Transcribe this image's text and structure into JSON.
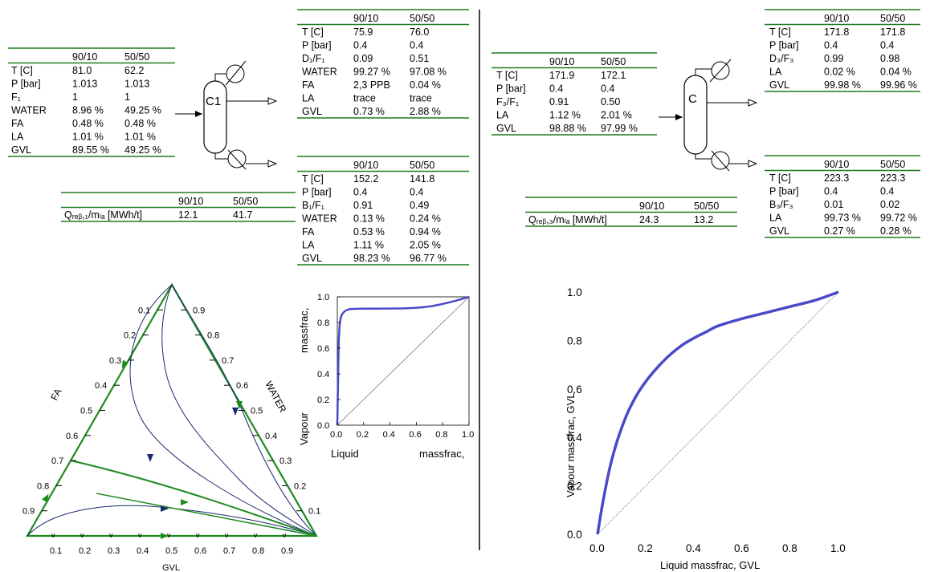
{
  "column_headers": [
    "90/10",
    "50/50"
  ],
  "left_feed": {
    "rows": [
      {
        "label": "T [C]",
        "values": [
          "81.0",
          "62.2"
        ]
      },
      {
        "label": "P [bar]",
        "values": [
          "1.013",
          "1.013"
        ]
      },
      {
        "label": "F₁",
        "values": [
          "1",
          "1"
        ]
      },
      {
        "label": "WATER",
        "values": [
          "8.96 %",
          "49.25 %"
        ]
      },
      {
        "label": "FA",
        "values": [
          "0.48 %",
          "0.48 %"
        ]
      },
      {
        "label": "LA",
        "values": [
          "1.01 %",
          "1.01 %"
        ]
      },
      {
        "label": "GVL",
        "values": [
          "89.55 %",
          "49.25 %"
        ]
      }
    ]
  },
  "left_top_product": {
    "rows": [
      {
        "label": "T [C]",
        "values": [
          "75.9",
          "76.0"
        ]
      },
      {
        "label": "P [bar]",
        "values": [
          "0.4",
          "0.4"
        ]
      },
      {
        "label": "D₁/F₁",
        "values": [
          "0.09",
          "0.51"
        ]
      },
      {
        "label": "WATER",
        "values": [
          "99.27 %",
          "97.08 %"
        ]
      },
      {
        "label": "FA",
        "values": [
          "2,3 PPB",
          "0.04 %"
        ]
      },
      {
        "label": "LA",
        "values": [
          "trace",
          "trace"
        ]
      },
      {
        "label": "GVL",
        "values": [
          "0.73 %",
          "2.88 %"
        ]
      }
    ]
  },
  "left_bottom_product": {
    "rows": [
      {
        "label": "T [C]",
        "values": [
          "152.2",
          "141.8"
        ]
      },
      {
        "label": "P [bar]",
        "values": [
          "0.4",
          "0.4"
        ]
      },
      {
        "label": "B₁/F₁",
        "values": [
          "0.91",
          "0.49"
        ]
      },
      {
        "label": "WATER",
        "values": [
          "0.13 %",
          "0.24 %"
        ]
      },
      {
        "label": "FA",
        "values": [
          "0.53 %",
          "0.94 %"
        ]
      },
      {
        "label": "LA",
        "values": [
          "1.11 %",
          "2.05 %"
        ]
      },
      {
        "label": "GVL",
        "values": [
          "98.23 %",
          "96.77 %"
        ]
      }
    ]
  },
  "left_reboiler": {
    "rows": [
      {
        "label": "Qᵣₑᵦ,₁/mₗₐ [MWh/t]",
        "values": [
          "12.1",
          "41.7"
        ]
      }
    ]
  },
  "column_labels": {
    "left": "C1",
    "right": "C"
  },
  "right_feed": {
    "rows": [
      {
        "label": "T [C]",
        "values": [
          "171.9",
          "172.1"
        ]
      },
      {
        "label": "P [bar]",
        "values": [
          "0.4",
          "0.4"
        ]
      },
      {
        "label": "F₃/F₁",
        "values": [
          "0.91",
          "0.50"
        ]
      },
      {
        "label": "LA",
        "values": [
          "1.12 %",
          "2.01 %"
        ]
      },
      {
        "label": "GVL",
        "values": [
          "98.88 %",
          "97.99 %"
        ]
      }
    ]
  },
  "right_top_product": {
    "rows": [
      {
        "label": "T [C]",
        "values": [
          "171.8",
          "171.8"
        ]
      },
      {
        "label": "P [bar]",
        "values": [
          "0.4",
          "0.4"
        ]
      },
      {
        "label": "D₃/F₃",
        "values": [
          "0.99",
          "0.98"
        ]
      },
      {
        "label": "LA",
        "values": [
          "0.02 %",
          "0.04 %"
        ]
      },
      {
        "label": "GVL",
        "values": [
          "99.98 %",
          "99.96 %"
        ]
      }
    ]
  },
  "right_bottom_product": {
    "rows": [
      {
        "label": "T [C]",
        "values": [
          "223.3",
          "223.3"
        ]
      },
      {
        "label": "P [bar]",
        "values": [
          "0.4",
          "0.4"
        ]
      },
      {
        "label": "B₃/F₃",
        "values": [
          "0.01",
          "0.02"
        ]
      },
      {
        "label": "LA",
        "values": [
          "99.73 %",
          "99.72 %"
        ]
      },
      {
        "label": "GVL",
        "values": [
          "0.27 %",
          "0.28 %"
        ]
      }
    ]
  },
  "right_reboiler": {
    "rows": [
      {
        "label": "Qᵣₑᵦ,₃/mₗₐ [MWh/t]",
        "values": [
          "24.3",
          "13.2"
        ]
      }
    ]
  },
  "ternary": {
    "ticks": [
      "0.1",
      "0.2",
      "0.3",
      "0.4",
      "0.5",
      "0.6",
      "0.7",
      "0.8",
      "0.9"
    ],
    "axis_left": "FA",
    "axis_right": "WATER",
    "axis_bottom": "GVL"
  },
  "small_vle": {
    "ylabel_a": "Vapour",
    "ylabel_b": "massfrac,",
    "xlabel_a": "Liquid",
    "xlabel_b": "massfrac,",
    "ticks": [
      "0.0",
      "0.2",
      "0.4",
      "0.6",
      "0.8",
      "1.0"
    ]
  },
  "chart_data": [
    {
      "type": "line",
      "ylabel": "Vapour massfrac,",
      "xlabel": "Liquid massfrac,",
      "xlim": [
        0,
        1
      ],
      "ylim": [
        0,
        1
      ],
      "series": [
        {
          "x": [
            0,
            0.005,
            0.01,
            0.015,
            0.02,
            0.03,
            0.04,
            0.06,
            0.08,
            0.1,
            0.15,
            0.2,
            0.3,
            0.4,
            0.5,
            0.6,
            0.7,
            0.8,
            0.9,
            1.0
          ],
          "y": [
            0,
            0.3,
            0.6,
            0.74,
            0.8,
            0.85,
            0.87,
            0.89,
            0.9,
            0.905,
            0.907,
            0.908,
            0.908,
            0.909,
            0.91,
            0.915,
            0.925,
            0.945,
            0.97,
            1.0
          ]
        },
        {
          "x": [
            0,
            1
          ],
          "y": [
            0,
            1
          ]
        }
      ]
    },
    {
      "type": "line",
      "ylabel": "Vapour massfrac, GVL",
      "xlabel": "Liquid massfrac, GVL",
      "xlim": [
        0,
        1
      ],
      "ylim": [
        0,
        1
      ],
      "xticks": [
        "0.0",
        "0.2",
        "0.4",
        "0.6",
        "0.8",
        "1.0"
      ],
      "yticks": [
        "0.0",
        "0.2",
        "0.4",
        "0.6",
        "0.8",
        "1.0"
      ],
      "series": [
        {
          "x": [
            0,
            0.02,
            0.05,
            0.08,
            0.12,
            0.16,
            0.2,
            0.25,
            0.3,
            0.35,
            0.4,
            0.45,
            0.5,
            0.6,
            0.7,
            0.8,
            0.9,
            1.0
          ],
          "y": [
            0,
            0.12,
            0.27,
            0.38,
            0.49,
            0.57,
            0.63,
            0.69,
            0.74,
            0.78,
            0.81,
            0.835,
            0.86,
            0.89,
            0.915,
            0.94,
            0.965,
            1.0
          ]
        },
        {
          "x": [
            0,
            1
          ],
          "y": [
            0,
            1
          ]
        }
      ]
    }
  ]
}
